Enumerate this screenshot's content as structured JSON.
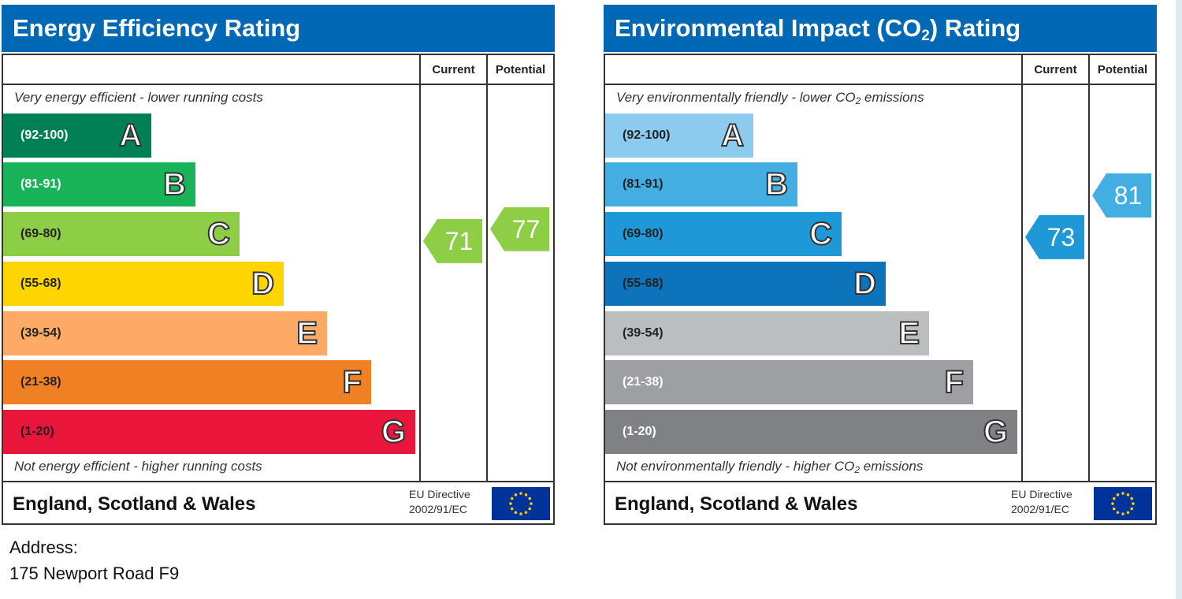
{
  "charts": [
    {
      "key": "energy",
      "title_html": "Energy Efficiency Rating",
      "col_current": "Current",
      "col_potential": "Potential",
      "top_note_html": "Very energy efficient - lower running costs",
      "bottom_note_html": "Not energy efficient - higher running costs",
      "region": "England, Scotland & Wales",
      "eu_line1": "EU Directive",
      "eu_line2": "2002/91/EC",
      "bands": [
        {
          "range": "(92-100)",
          "letter": "A",
          "color": "#008054",
          "text_color": "#ffffff"
        },
        {
          "range": "(81-91)",
          "letter": "B",
          "color": "#19b459",
          "text_color": "#ffffff"
        },
        {
          "range": "(69-80)",
          "letter": "C",
          "color": "#8dce46",
          "text_color": "#222222"
        },
        {
          "range": "(55-68)",
          "letter": "D",
          "color": "#ffd500",
          "text_color": "#222222"
        },
        {
          "range": "(39-54)",
          "letter": "E",
          "color": "#fcaa65",
          "text_color": "#222222"
        },
        {
          "range": "(21-38)",
          "letter": "F",
          "color": "#ef8023",
          "text_color": "#222222"
        },
        {
          "range": "(1-20)",
          "letter": "G",
          "color": "#e9153b",
          "text_color": "#222222"
        }
      ],
      "current": {
        "value": 71,
        "color": "#8dce46"
      },
      "potential": {
        "value": 77,
        "color": "#8dce46"
      }
    },
    {
      "key": "environment",
      "title_html": "Environmental Impact (CO<sub>2</sub>) Rating",
      "col_current": "Current",
      "col_potential": "Potential",
      "top_note_html": "Very environmentally friendly - lower CO<sub>2</sub> emissions",
      "bottom_note_html": "Not environmentally friendly - higher CO<sub>2</sub> emissions",
      "region": "England, Scotland & Wales",
      "eu_line1": "EU Directive",
      "eu_line2": "2002/91/EC",
      "bands": [
        {
          "range": "(92-100)",
          "letter": "A",
          "color": "#8ccbee",
          "text_color": "#222222"
        },
        {
          "range": "(81-91)",
          "letter": "B",
          "color": "#42aee2",
          "text_color": "#222222"
        },
        {
          "range": "(69-80)",
          "letter": "C",
          "color": "#1e98d6",
          "text_color": "#222222"
        },
        {
          "range": "(55-68)",
          "letter": "D",
          "color": "#0d74bb",
          "text_color": "#222222"
        },
        {
          "range": "(39-54)",
          "letter": "E",
          "color": "#bbbdbf",
          "text_color": "#222222"
        },
        {
          "range": "(21-38)",
          "letter": "F",
          "color": "#9d9fa2",
          "text_color": "#ffffff"
        },
        {
          "range": "(1-20)",
          "letter": "G",
          "color": "#808184",
          "text_color": "#ffffff"
        }
      ],
      "current": {
        "value": 73,
        "color": "#1e98d6"
      },
      "potential": {
        "value": 81,
        "color": "#42aee2"
      }
    }
  ],
  "address_label": "Address:",
  "address_value": "175 Newport Road F9"
}
